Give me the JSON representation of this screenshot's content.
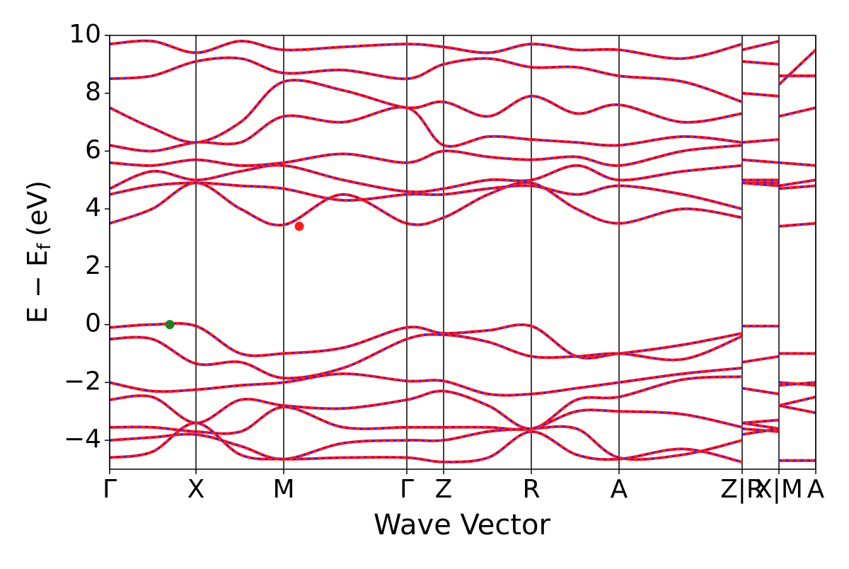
{
  "chart_data": {
    "type": "line",
    "xlabel": "Wave Vector",
    "ylabel": {
      "main": "E − E",
      "sub": "f",
      "unit": "(eV)"
    },
    "line_color": "#ff1a1a",
    "dash_color": "#1a1aff",
    "xlim": [
      0,
      9.98
    ],
    "ylim": [
      -5,
      10
    ],
    "xticks": [
      {
        "value": 0,
        "label": "Γ"
      },
      {
        "value": 1.22,
        "label": "X"
      },
      {
        "value": 2.46,
        "label": "M"
      },
      {
        "value": 4.2,
        "label": "Γ"
      },
      {
        "value": 4.72,
        "label": "Z"
      },
      {
        "value": 5.96,
        "label": "R"
      },
      {
        "value": 7.2,
        "label": "A"
      },
      {
        "value": 8.94,
        "label": "Z|R"
      },
      {
        "value": 9.46,
        "label": "X|M"
      },
      {
        "value": 9.98,
        "label": "A"
      }
    ],
    "yticks": [
      {
        "value": -4,
        "label": "−4"
      },
      {
        "value": -2,
        "label": "−2"
      },
      0,
      2,
      4,
      6,
      8,
      10
    ],
    "x": [
      0,
      0.6,
      1.22,
      1.85,
      2.46,
      3.3,
      4.2,
      4.72,
      5.35,
      5.96,
      6.6,
      7.2,
      8.1,
      8.94,
      8.94,
      8.94,
      9.46,
      9.46,
      9.46,
      9.98
    ],
    "series": [
      {
        "values": [
          -0.1,
          0.0,
          -0.05,
          -1.0,
          -1.0,
          -0.8,
          -0.1,
          -0.3,
          -0.2,
          -0.05,
          -1.1,
          -1.0,
          -0.7,
          -0.3,
          null,
          -0.05,
          -0.05,
          null,
          -1.0,
          -1.0
        ]
      },
      {
        "values": [
          -0.5,
          -0.5,
          -1.35,
          -1.3,
          -1.85,
          -1.5,
          -0.5,
          -0.35,
          -0.6,
          -1.1,
          -1.1,
          -1.0,
          -1.2,
          -0.4,
          null,
          -1.3,
          -1.1,
          null,
          -2.0,
          -2.1
        ]
      },
      {
        "values": [
          -2.0,
          -2.3,
          -2.25,
          -2.1,
          -2.0,
          -1.7,
          -1.95,
          -1.95,
          -2.4,
          -2.4,
          -2.2,
          -2.0,
          -1.7,
          -1.5,
          null,
          -2.2,
          -2.4,
          null,
          -2.1,
          -2.0
        ]
      },
      {
        "values": [
          -2.6,
          -2.5,
          -3.4,
          -2.6,
          -2.8,
          -2.9,
          -2.6,
          -2.3,
          -2.8,
          -3.6,
          -2.6,
          -2.5,
          -1.9,
          -1.8,
          null,
          -3.4,
          -3.3,
          null,
          -2.8,
          -2.5
        ]
      },
      {
        "values": [
          -3.55,
          -3.55,
          -3.7,
          -3.7,
          -2.85,
          -3.55,
          -3.55,
          -3.55,
          -3.55,
          -3.6,
          -3.0,
          -3.0,
          -3.1,
          -3.55,
          null,
          -3.4,
          -3.6,
          null,
          -2.8,
          -3.05
        ]
      },
      {
        "values": [
          -4.0,
          -3.9,
          -3.8,
          -4.2,
          -4.65,
          -4.1,
          -4.0,
          -4.0,
          -3.7,
          -3.6,
          -3.6,
          -4.6,
          -4.5,
          -4.0,
          null,
          -3.6,
          -3.7,
          null,
          -4.7,
          -4.7
        ]
      },
      {
        "values": [
          -4.6,
          -4.4,
          -3.4,
          -4.5,
          -4.65,
          -4.6,
          -4.6,
          -4.75,
          -4.6,
          -3.7,
          -4.5,
          -4.65,
          -4.3,
          -4.75,
          null,
          -3.8,
          -3.6,
          null,
          -4.7,
          -4.7
        ]
      },
      {
        "values": [
          3.5,
          4.0,
          4.9,
          4.0,
          3.45,
          4.5,
          3.5,
          3.7,
          4.5,
          4.9,
          4.0,
          3.5,
          4.0,
          3.7,
          null,
          4.9,
          4.9,
          null,
          3.4,
          3.5
        ]
      },
      {
        "values": [
          4.5,
          4.8,
          4.9,
          4.8,
          4.7,
          4.3,
          4.5,
          4.5,
          4.7,
          4.8,
          4.5,
          4.8,
          4.5,
          4.0,
          null,
          5.0,
          5.0,
          null,
          4.7,
          4.8
        ]
      },
      {
        "values": [
          4.7,
          5.3,
          5.0,
          5.3,
          5.5,
          5.0,
          4.6,
          4.7,
          5.0,
          5.0,
          5.5,
          5.0,
          5.3,
          5.5,
          null,
          5.7,
          5.6,
          null,
          5.6,
          5.5
        ]
      },
      {
        "values": [
          5.6,
          5.5,
          5.7,
          5.5,
          5.6,
          5.9,
          5.6,
          6.0,
          5.8,
          5.7,
          5.8,
          5.5,
          6.0,
          6.2,
          null,
          6.3,
          6.4,
          null,
          7.2,
          7.5
        ]
      },
      {
        "values": [
          6.2,
          6.0,
          6.3,
          6.3,
          7.2,
          7.0,
          7.5,
          6.2,
          6.5,
          6.4,
          6.3,
          6.2,
          6.5,
          6.3,
          null,
          4.9,
          4.8,
          null,
          4.8,
          5.0
        ]
      },
      {
        "values": [
          7.5,
          6.8,
          6.3,
          7.0,
          8.4,
          8.1,
          7.5,
          7.7,
          7.2,
          7.9,
          7.3,
          7.6,
          7.0,
          7.3,
          null,
          8.0,
          7.9,
          null,
          8.6,
          8.6
        ]
      },
      {
        "values": [
          8.5,
          8.6,
          9.1,
          9.2,
          8.7,
          8.8,
          8.5,
          9.0,
          9.2,
          8.9,
          8.9,
          8.6,
          8.4,
          7.7,
          null,
          9.1,
          9.0,
          null,
          8.3,
          9.5
        ]
      },
      {
        "values": [
          9.7,
          9.8,
          9.4,
          9.8,
          9.5,
          9.6,
          9.7,
          9.6,
          9.4,
          9.7,
          9.5,
          9.5,
          9.2,
          9.7,
          null,
          9.5,
          9.8,
          null,
          8.6,
          8.6
        ]
      }
    ],
    "markers": [
      {
        "x": 0.85,
        "y": 0,
        "color": "#1f7f1f"
      },
      {
        "x": 2.68,
        "y": 3.4,
        "color": "#ff1a1a"
      }
    ]
  }
}
